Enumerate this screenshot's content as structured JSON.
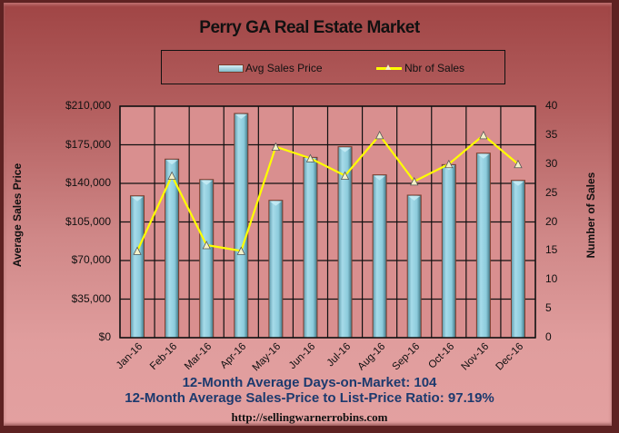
{
  "chart_data": {
    "type": "bar",
    "title": "Perry GA Real Estate Market",
    "categories": [
      "Jan-16",
      "Feb-16",
      "Mar-16",
      "Apr-16",
      "May-16",
      "Jun-16",
      "Jul-16",
      "Aug-16",
      "Sep-16",
      "Oct-16",
      "Nov-16",
      "Dec-16"
    ],
    "series": [
      {
        "name": "Avg Sales Price",
        "type": "bar",
        "axis": "left",
        "values": [
          128700,
          162000,
          143500,
          203400,
          124600,
          163600,
          173200,
          147700,
          129300,
          157000,
          167400,
          142700
        ],
        "color": "#8fcfe0"
      },
      {
        "name": "Nbr of Sales",
        "type": "line",
        "axis": "right",
        "values": [
          15,
          28,
          16,
          15,
          33,
          31,
          28,
          35,
          27,
          30,
          35,
          30
        ],
        "color": "#ffff00"
      }
    ],
    "ylabel": "Average Sales Price",
    "y2label": "Number of Sales",
    "ylim": [
      0,
      210000
    ],
    "y2lim": [
      0,
      40
    ],
    "yticks": [
      "$0",
      "$35,000",
      "$70,000",
      "$105,000",
      "$140,000",
      "$175,000",
      "$210,000"
    ],
    "y2ticks": [
      "0",
      "5",
      "10",
      "15",
      "20",
      "25",
      "30",
      "35",
      "40"
    ],
    "yticks_values": [
      0,
      35000,
      70000,
      105000,
      140000,
      175000,
      210000
    ],
    "y2ticks_values": [
      0,
      5,
      10,
      15,
      20,
      25,
      30,
      35,
      40
    ],
    "grid": true,
    "legend": "top-center"
  },
  "footer": {
    "days_on_market": "12-Month Average Days-on-Market: 104",
    "ratio": "12-Month Average Sales-Price to List-Price Ratio: 97.19%",
    "url": "http://sellingwarnerrobins.com"
  },
  "colors": {
    "bar": "#8fcfe0",
    "bar_border": "#7a3b2a",
    "line": "#ffff00",
    "plot_bg": "#d98f8f",
    "footer_text": "#1c3a6e"
  }
}
